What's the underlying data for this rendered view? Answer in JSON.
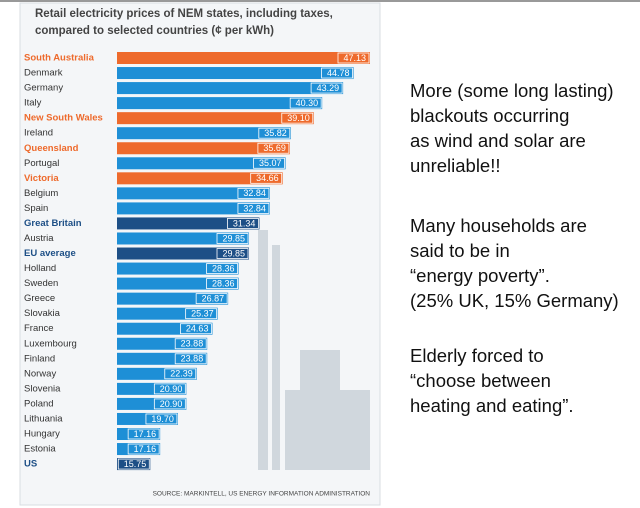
{
  "chart_data": {
    "type": "bar",
    "title": [
      "Retail electricity prices of NEM states, including taxes,",
      "compared to selected countries (¢ per kWh)"
    ],
    "categories": [
      "South Australia",
      "Denmark",
      "Germany",
      "Italy",
      "New South Wales",
      "Ireland",
      "Queensland",
      "Portugal",
      "Victoria",
      "Belgium",
      "Spain",
      "Great Britain",
      "Austria",
      "EU average",
      "Holland",
      "Sweden",
      "Greece",
      "Slovakia",
      "France",
      "Luxembourg",
      "Finland",
      "Norway",
      "Slovenia",
      "Poland",
      "Lithuania",
      "Hungary",
      "Estonia",
      "US"
    ],
    "values": [
      47.13,
      44.78,
      43.29,
      40.3,
      39.1,
      35.82,
      35.69,
      35.07,
      34.66,
      32.84,
      32.84,
      31.34,
      29.85,
      29.85,
      28.36,
      28.36,
      26.87,
      25.37,
      24.63,
      23.88,
      23.88,
      22.39,
      20.9,
      20.9,
      19.7,
      17.16,
      17.16,
      15.75
    ],
    "value_labels": [
      "47.13",
      "44.78",
      "43.29",
      "40.30",
      "39.10",
      "35.82",
      "35.69",
      "35.07",
      "34.66",
      "32.84",
      "32.84",
      "31.34",
      "29.85",
      "29.85",
      "28.36",
      "28.36",
      "26.87",
      "25.37",
      "24.63",
      "23.88",
      "23.88",
      "22.39",
      "20.90",
      "20.90",
      "19.70",
      "17.16",
      "17.16",
      "15.75"
    ],
    "colors": [
      "#ee6a2c",
      "#1e8fd6",
      "#1e8fd6",
      "#1e8fd6",
      "#ee6a2c",
      "#1e8fd6",
      "#ee6a2c",
      "#1e8fd6",
      "#ee6a2c",
      "#1e8fd6",
      "#1e8fd6",
      "#1d4f86",
      "#1e8fd6",
      "#1d4f86",
      "#1e8fd6",
      "#1e8fd6",
      "#1e8fd6",
      "#1e8fd6",
      "#1e8fd6",
      "#1e8fd6",
      "#1e8fd6",
      "#1e8fd6",
      "#1e8fd6",
      "#1e8fd6",
      "#1e8fd6",
      "#1e8fd6",
      "#1e8fd6",
      "#1d4f86"
    ],
    "source": "SOURCE: MARKINTELL, US ENERGY INFORMATION ADMINISTRATION"
  },
  "notes": [
    [
      "More (some long lasting)",
      "blackouts occurring",
      "as wind and solar are",
      "unreliable!!"
    ],
    [
      "Many households are",
      "said to be in",
      "“energy poverty”.",
      "(25% UK, 15% Germany)"
    ],
    [
      "Elderly forced to",
      "“choose between",
      "heating and eating”."
    ]
  ]
}
